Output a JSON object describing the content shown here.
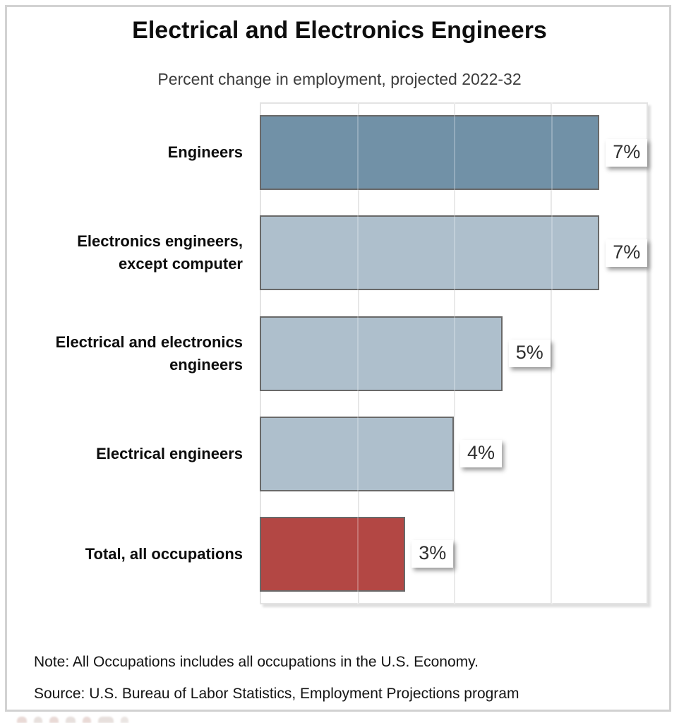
{
  "title": "Electrical and Electronics Engineers",
  "subtitle": "Percent change in employment, projected 2022-32",
  "footnotes": {
    "note": "Note: All Occupations includes all occupations in the U.S. Economy.",
    "source": "Source: U.S. Bureau of Labor Statistics, Employment Projections program"
  },
  "chart_data": {
    "type": "bar",
    "orientation": "horizontal",
    "title": "Electrical and Electronics Engineers",
    "subtitle": "Percent change in employment, projected 2022-32",
    "categories": [
      "Engineers",
      "Electronics engineers, except computer",
      "Electrical and electronics engineers",
      "Electrical engineers",
      "Total, all occupations"
    ],
    "display_labels": [
      "Engineers",
      "Electronics engineers,\nexcept computer",
      "Electrical and electronics\nengineers",
      "Electrical engineers",
      "Total, all occupations"
    ],
    "values": [
      7,
      7,
      5,
      4,
      3
    ],
    "value_labels": [
      "7%",
      "7%",
      "5%",
      "4%",
      "3%"
    ],
    "unit": "percent",
    "xlim": [
      0,
      8
    ],
    "gridline_interval": 2,
    "grid": true,
    "legend": false,
    "bar_colors": [
      "#7191a7",
      "#aebfcc",
      "#aebfcc",
      "#aebfcc",
      "#b34744"
    ],
    "bar_border_color": "#696969"
  },
  "colors": {
    "bar_primary": "#7191a7",
    "bar_secondary": "#aebfcc",
    "bar_total": "#b34744",
    "gridline": "#e3e3e3",
    "frame_border": "#d2d2d2",
    "title_text": "#0d0d0d",
    "subtitle_text": "#3d3d3d"
  }
}
